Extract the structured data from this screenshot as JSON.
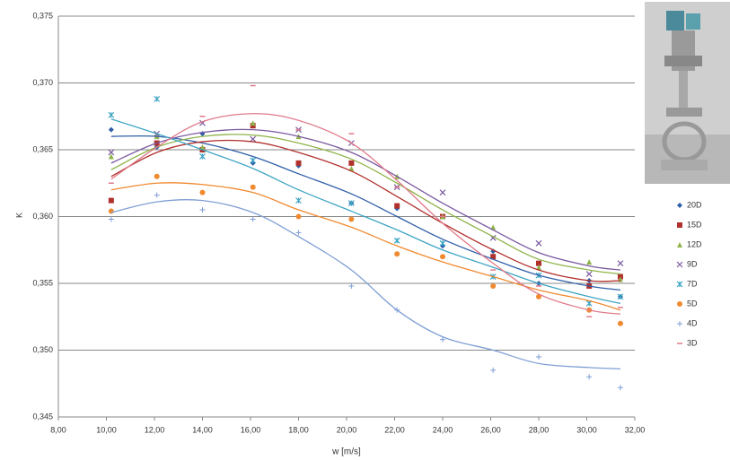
{
  "chart_data": {
    "type": "scatter",
    "x_label": "w [m/s]",
    "y_label": "K",
    "xlim": [
      8,
      32
    ],
    "ylim": [
      0.345,
      0.375
    ],
    "xticks": [
      {
        "value": 8,
        "label": "8,00"
      },
      {
        "value": 10,
        "label": "10,00"
      },
      {
        "value": 12,
        "label": "12,00"
      },
      {
        "value": 14,
        "label": "14,00"
      },
      {
        "value": 16,
        "label": "16,00"
      },
      {
        "value": 18,
        "label": "18,00"
      },
      {
        "value": 20,
        "label": "20,00"
      },
      {
        "value": 22,
        "label": "22,00"
      },
      {
        "value": 24,
        "label": "24,00"
      },
      {
        "value": 26,
        "label": "26,00"
      },
      {
        "value": 28,
        "label": "28,00"
      },
      {
        "value": 30,
        "label": "30,00"
      },
      {
        "value": 32,
        "label": "32,00"
      }
    ],
    "yticks": [
      {
        "value": 0.345,
        "label": "0,345"
      },
      {
        "value": 0.35,
        "label": "0,350"
      },
      {
        "value": 0.355,
        "label": "0,355"
      },
      {
        "value": 0.36,
        "label": "0,360"
      },
      {
        "value": 0.365,
        "label": "0,365"
      },
      {
        "value": 0.37,
        "label": "0,370"
      },
      {
        "value": 0.375,
        "label": "0,375"
      }
    ],
    "grid": true,
    "legend": "right",
    "x": [
      10.2,
      12.1,
      14.0,
      16.1,
      18.0,
      20.2,
      22.1,
      24.0,
      26.1,
      28.0,
      30.1,
      31.4
    ],
    "series": [
      {
        "name": "20D",
        "color": "#2f5fa8",
        "marker": "diamond",
        "values": [
          0.3665,
          0.3652,
          0.3662,
          0.364,
          0.3638,
          0.361,
          0.3606,
          0.3578,
          0.3574,
          0.355,
          0.3552,
          0.354
        ],
        "trend": [
          0.366,
          0.366,
          0.3655,
          0.3645,
          0.3632,
          0.3617,
          0.36,
          0.3583,
          0.3568,
          0.3556,
          0.3548,
          0.3545
        ]
      },
      {
        "name": "15D",
        "color": "#b0302c",
        "marker": "square",
        "values": [
          0.3612,
          0.3655,
          0.365,
          0.3668,
          0.364,
          0.364,
          0.3608,
          0.36,
          0.357,
          0.3565,
          0.3548,
          0.3555
        ],
        "trend": [
          0.363,
          0.3648,
          0.3656,
          0.3656,
          0.3648,
          0.3634,
          0.3615,
          0.3595,
          0.3575,
          0.356,
          0.3552,
          0.3552
        ]
      },
      {
        "name": "12D",
        "color": "#8fb34a",
        "marker": "triangle",
        "values": [
          0.3645,
          0.366,
          0.3652,
          0.367,
          0.366,
          0.3636,
          0.363,
          0.36,
          0.3592,
          0.3562,
          0.3566,
          0.3553
        ],
        "trend": [
          0.3635,
          0.3652,
          0.366,
          0.3661,
          0.3655,
          0.3643,
          0.3625,
          0.3605,
          0.3585,
          0.3568,
          0.356,
          0.3557
        ]
      },
      {
        "name": "9D",
        "color": "#7a5aa0",
        "marker": "x",
        "values": [
          0.3648,
          0.3662,
          0.367,
          0.3658,
          0.3665,
          0.3655,
          0.3622,
          0.3618,
          0.3584,
          0.358,
          0.3557,
          0.3565
        ],
        "trend": [
          0.364,
          0.3655,
          0.3663,
          0.3665,
          0.366,
          0.3648,
          0.363,
          0.361,
          0.359,
          0.3573,
          0.3563,
          0.356
        ]
      },
      {
        "name": "7D",
        "color": "#3fa5c4",
        "marker": "star",
        "values": [
          0.3676,
          0.3688,
          0.3645,
          0.3642,
          0.3612,
          0.361,
          0.3582,
          0.358,
          0.3555,
          0.3556,
          0.3535,
          0.354
        ],
        "trend": [
          0.3673,
          0.3662,
          0.365,
          0.3636,
          0.362,
          0.3604,
          0.359,
          0.3575,
          0.3562,
          0.355,
          0.354,
          0.3535
        ]
      },
      {
        "name": "5D",
        "color": "#f08a30",
        "marker": "circle",
        "values": [
          0.3604,
          0.363,
          0.3618,
          0.3622,
          0.36,
          0.3598,
          0.3572,
          0.357,
          0.3548,
          0.354,
          0.353,
          0.352
        ],
        "trend": [
          0.362,
          0.3625,
          0.3624,
          0.3618,
          0.3605,
          0.3592,
          0.3578,
          0.3566,
          0.3555,
          0.3545,
          0.3537,
          0.353
        ]
      },
      {
        "name": "4D",
        "color": "#7f9fd4",
        "marker": "plus",
        "values": [
          0.3598,
          0.3616,
          0.3605,
          0.3598,
          0.3588,
          0.3548,
          0.353,
          0.3508,
          0.3485,
          0.3495,
          0.348,
          0.3472
        ],
        "trend": [
          0.3603,
          0.3611,
          0.3612,
          0.3603,
          0.3585,
          0.356,
          0.353,
          0.351,
          0.35,
          0.349,
          0.3487,
          0.3486
        ]
      },
      {
        "name": "3D",
        "color": "#e07a8a",
        "marker": "dash",
        "values": [
          0.3625,
          0.366,
          0.3675,
          0.3698,
          0.3665,
          0.3662,
          0.3622,
          0.36,
          0.356,
          0.3548,
          0.3525,
          0.3532
        ],
        "trend": [
          0.3628,
          0.3652,
          0.3671,
          0.3677,
          0.3672,
          0.3655,
          0.3627,
          0.3595,
          0.3565,
          0.3542,
          0.353,
          0.3527
        ]
      }
    ]
  }
}
